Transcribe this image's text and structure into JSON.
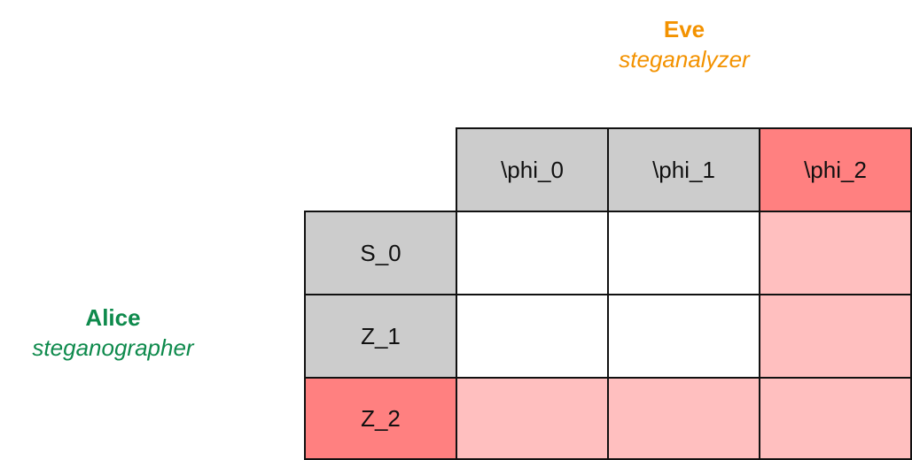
{
  "eve": {
    "name": "Eve",
    "role": "steganalyzer"
  },
  "alice": {
    "name": "Alice",
    "role": "steganographer"
  },
  "columns": [
    "\\phi_0",
    "\\phi_1",
    "\\phi_2"
  ],
  "rows": [
    "S_0",
    "Z_1",
    "Z_2"
  ],
  "colors": {
    "eve": "#f39200",
    "alice": "#0e8a4c",
    "header_gray": "#cccccc",
    "highlight_header": "#ff8080",
    "highlight_cell": "#ffbfbf",
    "plain_cell": "#ffffff"
  }
}
